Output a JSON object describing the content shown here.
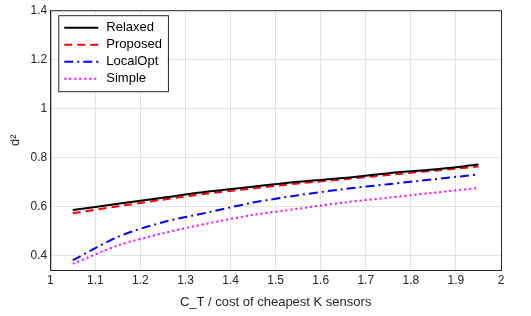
{
  "chart_data": {
    "type": "line",
    "x_label": "C_T / cost of cheapest K sensors",
    "y_label": "d²",
    "x": [
      1.05,
      1.15,
      1.25,
      1.35,
      1.45,
      1.55,
      1.65,
      1.75,
      1.85,
      1.95
    ],
    "series": [
      {
        "name": "Relaxed",
        "color": "#000000",
        "line_style": "solid",
        "values": [
          0.585,
          0.61,
          0.635,
          0.66,
          0.68,
          0.7,
          0.715,
          0.735,
          0.75,
          0.77
        ]
      },
      {
        "name": "Proposed",
        "color": "#ff0000",
        "line_style": "dashed",
        "values": [
          0.572,
          0.6,
          0.627,
          0.652,
          0.673,
          0.693,
          0.71,
          0.728,
          0.745,
          0.762
        ]
      },
      {
        "name": "LocalOpt",
        "color": "#0000ff",
        "line_style": "dashdot",
        "values": [
          0.38,
          0.475,
          0.535,
          0.575,
          0.615,
          0.645,
          0.67,
          0.69,
          0.71,
          0.73
        ]
      },
      {
        "name": "Simple",
        "color": "#ff00ff",
        "line_style": "dotted",
        "values": [
          0.365,
          0.44,
          0.49,
          0.53,
          0.565,
          0.59,
          0.615,
          0.635,
          0.655,
          0.675
        ]
      }
    ],
    "xlim": [
      1,
      2
    ],
    "xticks": [
      1,
      1.1,
      1.2,
      1.3,
      1.4,
      1.5,
      1.6,
      1.7,
      1.8,
      1.9,
      2
    ],
    "ylim": [
      0.34,
      1.4
    ],
    "yticks": [
      0.4,
      0.6,
      0.8,
      1,
      1.2,
      1.4
    ],
    "grid": true,
    "legend": "upper left"
  }
}
